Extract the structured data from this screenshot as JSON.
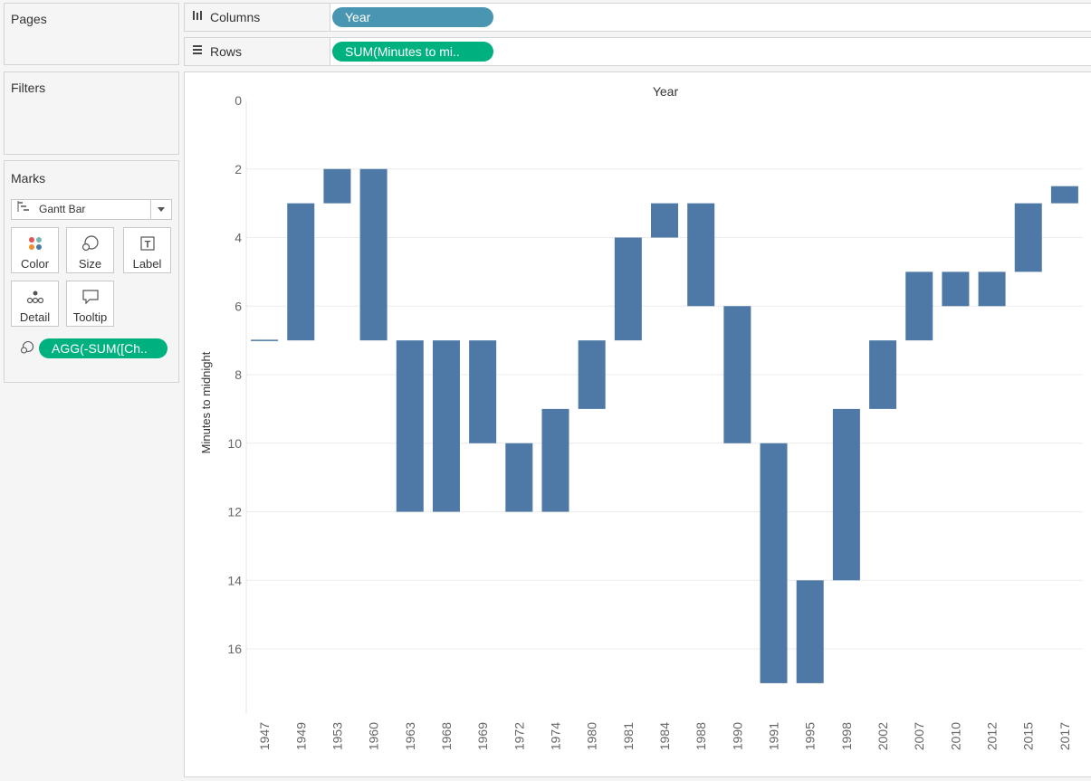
{
  "pages": {
    "title": "Pages"
  },
  "filters": {
    "title": "Filters"
  },
  "marks": {
    "title": "Marks",
    "mark_type": "Gantt Bar",
    "buttons": [
      "Color",
      "Size",
      "Label",
      "Detail",
      "Tooltip"
    ],
    "size_pill": "AGG(-SUM([Ch.."
  },
  "columns_shelf": {
    "label": "Columns",
    "pill": "Year",
    "pill_color": "#4996b2"
  },
  "rows_shelf": {
    "label": "Rows",
    "pill": "SUM(Minutes to mi..",
    "pill_color": "#00b180"
  },
  "colors": {
    "bar": "#4e79a7",
    "grid": "#ececec",
    "axis_text": "#666666"
  },
  "chart_data": {
    "type": "bar",
    "subtype": "gantt",
    "title": "Year",
    "ylabel": "Minutes to midnight",
    "y_reversed": true,
    "ylim": [
      0,
      17.9
    ],
    "yticks": [
      0,
      2,
      4,
      6,
      8,
      10,
      12,
      14,
      16
    ],
    "categories": [
      "1947",
      "1949",
      "1953",
      "1960",
      "1963",
      "1968",
      "1969",
      "1972",
      "1974",
      "1980",
      "1981",
      "1984",
      "1988",
      "1990",
      "1991",
      "1995",
      "1998",
      "2002",
      "2007",
      "2010",
      "2012",
      "2015",
      "2017"
    ],
    "bar_start": [
      7,
      3,
      2,
      2,
      7,
      7,
      7,
      10,
      9,
      7,
      4,
      3,
      3,
      6,
      10,
      14,
      9,
      7,
      5,
      5,
      5,
      3,
      2.5
    ],
    "bar_end": [
      7,
      7,
      3,
      7,
      12,
      12,
      10,
      12,
      12,
      9,
      7,
      4,
      6,
      10,
      17,
      17,
      14,
      9,
      7,
      6,
      6,
      5,
      3
    ]
  }
}
